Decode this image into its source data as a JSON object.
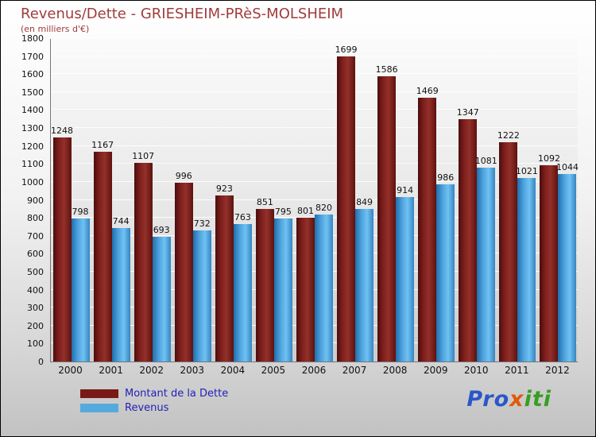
{
  "title": "Revenus/Dette - GRIESHEIM-PRèS-MOLSHEIM",
  "subtitle": "(en milliers d'€)",
  "legend": [
    {
      "label": "Montant de la Dette",
      "color": "#7a1a16"
    },
    {
      "label": "Revenus",
      "color": "#55aadd"
    }
  ],
  "logo": {
    "parts": [
      {
        "text": "Pro",
        "color": "#2a57c8"
      },
      {
        "text": "x",
        "color": "#e2590a"
      },
      {
        "text": "iti",
        "color": "#3a9d23"
      }
    ]
  },
  "chart_data": {
    "type": "bar",
    "title": "Revenus/Dette - GRIESHEIM-PRèS-MOLSHEIM",
    "subtitle": "(en milliers d'€)",
    "categories": [
      "2000",
      "2001",
      "2002",
      "2003",
      "2004",
      "2005",
      "2006",
      "2007",
      "2008",
      "2009",
      "2010",
      "2011",
      "2012"
    ],
    "series": [
      {
        "name": "Montant de la Dette",
        "color": "#7a1a16",
        "values": [
          1248,
          1167,
          1107,
          996,
          923,
          851,
          801,
          1699,
          1586,
          1469,
          1347,
          1222,
          1092
        ]
      },
      {
        "name": "Revenus",
        "color": "#55aadd",
        "values": [
          798,
          744,
          693,
          732,
          763,
          795,
          820,
          849,
          914,
          986,
          1081,
          1021,
          1044
        ]
      }
    ],
    "ylim": [
      0,
      1800
    ],
    "yticks": [
      0,
      100,
      200,
      300,
      400,
      500,
      600,
      700,
      800,
      900,
      1000,
      1100,
      1200,
      1300,
      1400,
      1500,
      1600,
      1700,
      1800
    ],
    "grid": true,
    "legend_position": "bottom-left"
  }
}
